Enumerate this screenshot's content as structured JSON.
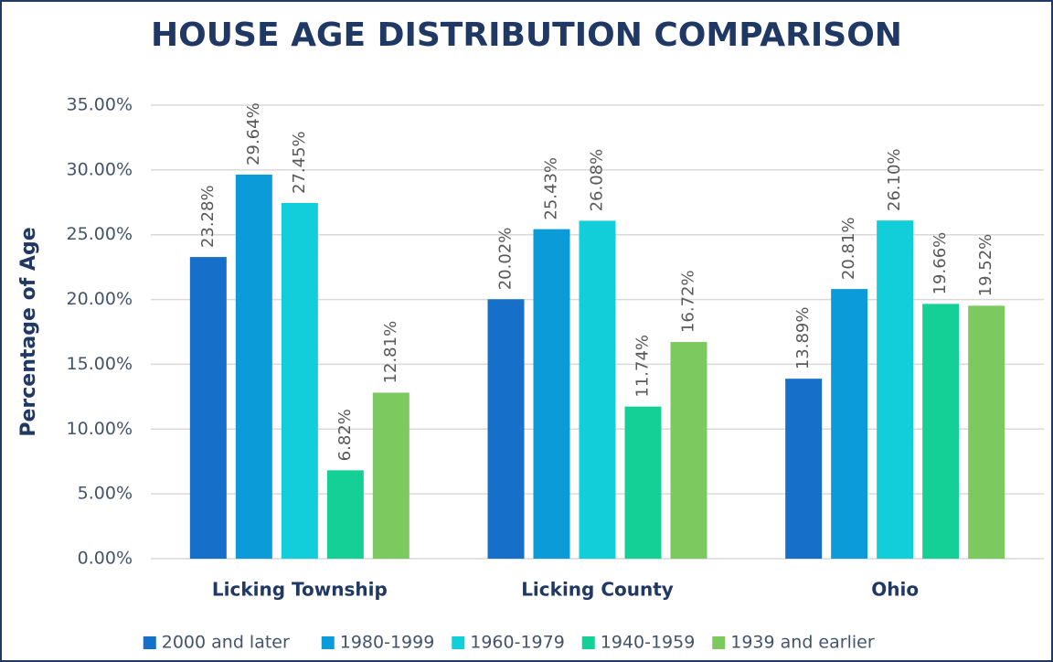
{
  "chart_data": {
    "type": "bar",
    "title": "HOUSE AGE DISTRIBUTION COMPARISON",
    "y_label": "Percentage of Age",
    "categories": [
      "Licking Township",
      "Licking County",
      "Ohio"
    ],
    "series": [
      {
        "name": "2000 and later",
        "color": "#1670c9",
        "values": [
          23.28,
          20.02,
          13.89
        ],
        "value_labels": [
          "23.28%",
          "20.02%",
          "13.89%"
        ]
      },
      {
        "name": "1980-1999",
        "color": "#0b9bd9",
        "values": [
          29.64,
          25.43,
          20.81
        ],
        "value_labels": [
          "29.64%",
          "25.43%",
          "20.81%"
        ]
      },
      {
        "name": "1960-1979",
        "color": "#12ced9",
        "values": [
          27.45,
          26.08,
          26.1
        ],
        "value_labels": [
          "27.45%",
          "26.08%",
          "26.10%"
        ]
      },
      {
        "name": "1940-1959",
        "color": "#14cf96",
        "values": [
          6.82,
          11.74,
          19.66
        ],
        "value_labels": [
          "6.82%",
          "11.74%",
          "19.66%"
        ]
      },
      {
        "name": "1939 and earlier",
        "color": "#7cc95f",
        "values": [
          12.81,
          16.72,
          19.52
        ],
        "value_labels": [
          "12.81%",
          "16.72%",
          "19.52%"
        ]
      }
    ],
    "ylim": [
      0,
      35
    ],
    "yticks": [
      {
        "value": 0,
        "label": "0.00%"
      },
      {
        "value": 5,
        "label": "5.00%"
      },
      {
        "value": 10,
        "label": "10.00%"
      },
      {
        "value": 15,
        "label": "15.00%"
      },
      {
        "value": 20,
        "label": "20.00%"
      },
      {
        "value": 25,
        "label": "25.00%"
      },
      {
        "value": 30,
        "label": "30.00%"
      },
      {
        "value": 35,
        "label": "35.00%"
      }
    ],
    "grid": true,
    "legend": "bottom"
  }
}
